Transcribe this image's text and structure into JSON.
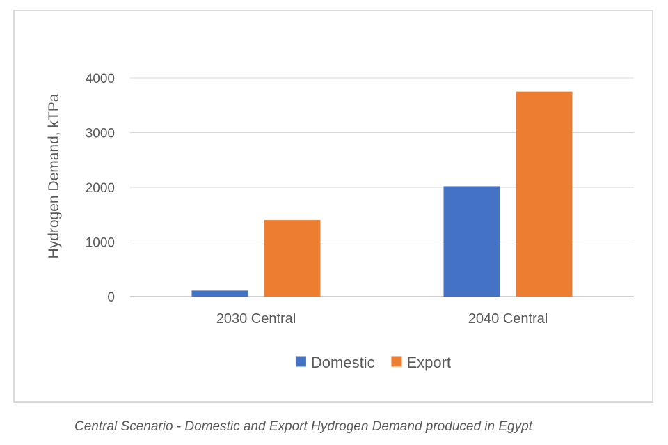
{
  "caption": "Central Scenario - Domestic and Export Hydrogen Demand produced in Egypt",
  "chart_data": {
    "type": "bar",
    "title": "",
    "xlabel": "",
    "ylabel": "Hydrogen Demand, kTPa",
    "categories": [
      "2030 Central",
      "2040 Central"
    ],
    "series": [
      {
        "name": "Domestic",
        "values": [
          110,
          2020
        ],
        "color": "#4472c4"
      },
      {
        "name": "Export",
        "values": [
          1400,
          3750
        ],
        "color": "#ed7d31"
      }
    ],
    "ylim": [
      0,
      4000
    ],
    "yticks": [
      0,
      1000,
      2000,
      3000,
      4000
    ],
    "grid": true,
    "legend_position": "bottom"
  }
}
